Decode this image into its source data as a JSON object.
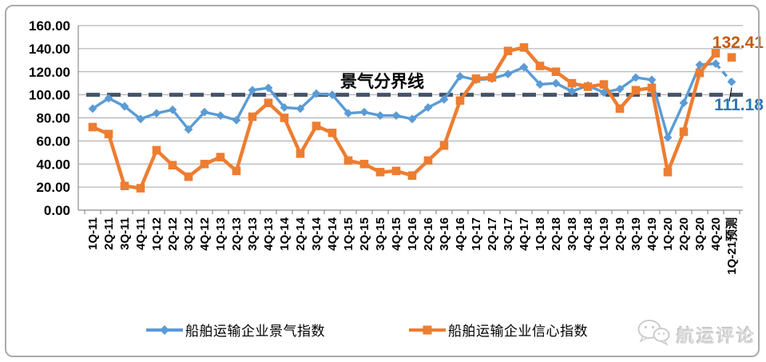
{
  "chart_data": {
    "type": "line",
    "title": "",
    "xlabel": "",
    "ylabel": "",
    "ylim": [
      0,
      160
    ],
    "ytick_step": 20,
    "ytick_labels": [
      "0.00",
      "20.00",
      "40.00",
      "60.00",
      "80.00",
      "100.00",
      "120.00",
      "140.00",
      "160.00"
    ],
    "grid": "horizontal",
    "legend_position": "bottom",
    "categories": [
      "1Q-11",
      "2Q-11",
      "3Q-11",
      "4Q-11",
      "1Q-12",
      "2Q-12",
      "3Q-12",
      "4Q-12",
      "1Q-13",
      "2Q-13",
      "3Q-13",
      "4Q-13",
      "1Q-14",
      "2Q-14",
      "3Q-14",
      "4Q-14",
      "1Q-15",
      "2Q-15",
      "3Q-15",
      "4Q-15",
      "1Q-16",
      "2Q-16",
      "3Q-16",
      "4Q-16",
      "1Q-17",
      "2Q-17",
      "3Q-17",
      "4Q-17",
      "1Q-18",
      "2Q-18",
      "3Q-18",
      "4Q-18",
      "1Q-19",
      "2Q-19",
      "3Q-19",
      "4Q-19",
      "1Q-20",
      "2Q-20",
      "3Q-20",
      "4Q-20",
      "1Q-21预测"
    ],
    "series": [
      {
        "name": "船舶运输企业景气指数",
        "color": "#5B9BD5",
        "marker": "diamond",
        "last_segment_dashed": true,
        "gap_before_last": false,
        "end_label": "111.18",
        "end_label_color": "#2E75B6",
        "values": [
          88,
          97,
          90,
          79,
          84,
          87,
          70,
          85,
          82,
          78,
          104,
          106,
          89,
          88,
          101,
          100,
          84,
          85,
          82,
          82,
          79,
          89,
          96,
          116,
          113,
          114,
          118,
          124,
          109,
          110,
          103,
          108,
          102,
          105,
          115,
          113,
          63,
          93,
          126,
          127,
          111.18
        ]
      },
      {
        "name": "船舶运输企业信心指数",
        "color": "#ED7D31",
        "marker": "square",
        "last_segment_dashed": false,
        "gap_before_last": true,
        "end_label": "132.41",
        "end_label_color": "#C45911",
        "values": [
          72,
          66,
          21,
          19,
          52,
          39,
          29,
          40,
          46,
          34,
          81,
          93,
          80,
          49,
          73,
          67,
          43,
          40,
          33,
          34,
          30,
          43,
          56,
          95,
          114,
          115,
          138,
          141,
          125,
          120,
          110,
          107,
          109,
          88,
          104,
          106,
          33,
          68,
          119,
          136,
          132.41
        ]
      }
    ],
    "refline": {
      "value": 100,
      "label": "景气分界线",
      "color": "#44546A"
    }
  },
  "legend": {
    "items": [
      {
        "label": "船舶运输企业景气指数"
      },
      {
        "label": "船舶运输企业信心指数"
      }
    ]
  },
  "watermark": {
    "text": "航运评论"
  }
}
